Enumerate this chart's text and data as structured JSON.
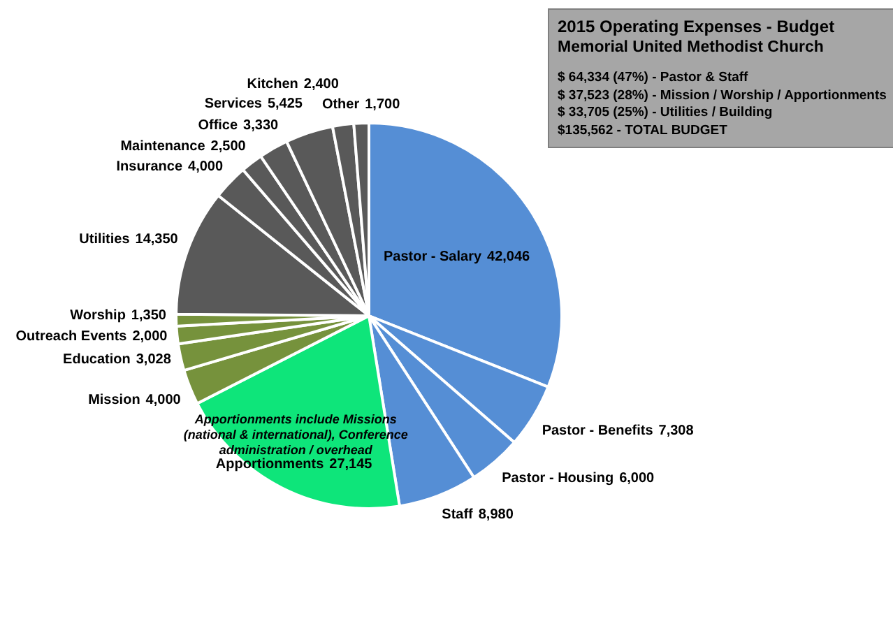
{
  "chart_data": {
    "type": "pie",
    "title": "2015 Operating Expenses - Budget",
    "subtitle": "Memorial United Methodist Church",
    "categories": [
      "Pastor - Salary",
      "Pastor - Benefits",
      "Pastor - Housing",
      "Staff",
      "Apportionments",
      "Mission",
      "Education",
      "Outreach Events",
      "Worship",
      "Utilities",
      "Insurance",
      "Maintenance",
      "Office",
      "Services",
      "Kitchen",
      "Other"
    ],
    "values": [
      42046,
      7308,
      6000,
      8980,
      27145,
      4000,
      3028,
      2000,
      1350,
      14350,
      4000,
      2500,
      3330,
      5425,
      2400,
      1700
    ],
    "colors": [
      "#558ed5",
      "#558ed5",
      "#558ed5",
      "#558ed5",
      "#0ee57a",
      "#76923c",
      "#76923c",
      "#76923c",
      "#76923c",
      "#595959",
      "#595959",
      "#595959",
      "#595959",
      "#595959",
      "#595959",
      "#595959"
    ],
    "value_labels": [
      "42,046",
      "7,308",
      "6,000",
      "8,980",
      "27,145",
      "4,000",
      "3,028",
      "2,000",
      "1,350",
      "14,350",
      "4,000",
      "2,500",
      "3,330",
      "5,425",
      "2,400",
      "1,700"
    ],
    "annotations": [
      "$ 64,334 (47%) - Pastor & Staff",
      "$ 37,523 (28%) - Mission / Worship / Apportionments",
      "$ 33,705 (25%) - Utilities / Building",
      "$135,562 - TOTAL BUDGET",
      {
        "text": "Apportionments include Missions (national & international), Conference administration / overhead",
        "x": "Apportionments"
      }
    ]
  }
}
